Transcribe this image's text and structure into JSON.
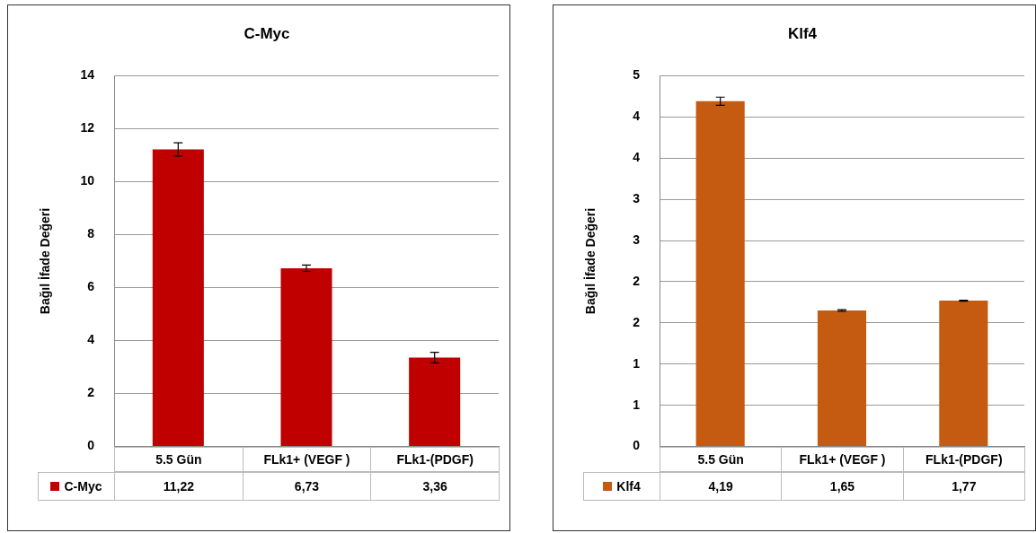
{
  "chart_data": [
    {
      "type": "bar",
      "title": "C-Myc",
      "ylabel": "Bağıl İfade Değeri",
      "categories": [
        "5.5 Gün",
        "FLk1+ (VEGF )",
        "FLk1-(PDGF)"
      ],
      "series": [
        {
          "name": "C-Myc",
          "color": "#c00000",
          "values": [
            11.22,
            6.73,
            3.36
          ],
          "errors": [
            0.25,
            0.12,
            0.2
          ],
          "value_labels": [
            "11,22",
            "6,73",
            "3,36"
          ]
        }
      ],
      "ylim": [
        0,
        14
      ],
      "yticks": [
        0,
        2,
        4,
        6,
        8,
        10,
        12,
        14
      ],
      "grid": "y"
    },
    {
      "type": "bar",
      "title": "Klf4",
      "ylabel": "Bağıl İfade Değeri",
      "categories": [
        "5.5 Gün",
        "FLk1+ (VEGF )",
        "FLk1-(PDGF)"
      ],
      "series": [
        {
          "name": "Klf4",
          "color": "#c55a11",
          "values": [
            4.19,
            1.65,
            1.77
          ],
          "errors": [
            0.05,
            0.01,
            0.005
          ],
          "value_labels": [
            "4,19",
            "1,65",
            "1,77"
          ]
        }
      ],
      "ylim": [
        0,
        4.5
      ],
      "yticks": [
        0,
        {
          "value": 0.5,
          "label": "1"
        },
        {
          "value": 1,
          "label": "1"
        },
        {
          "value": 1.5,
          "label": "2"
        },
        {
          "value": 2,
          "label": "2"
        },
        {
          "value": 2.5,
          "label": "3"
        },
        {
          "value": 3,
          "label": "3"
        },
        {
          "value": 3.5,
          "label": "4"
        },
        {
          "value": 4,
          "label": "4"
        },
        {
          "value": 4.5,
          "label": "5"
        }
      ],
      "grid": "y"
    }
  ]
}
